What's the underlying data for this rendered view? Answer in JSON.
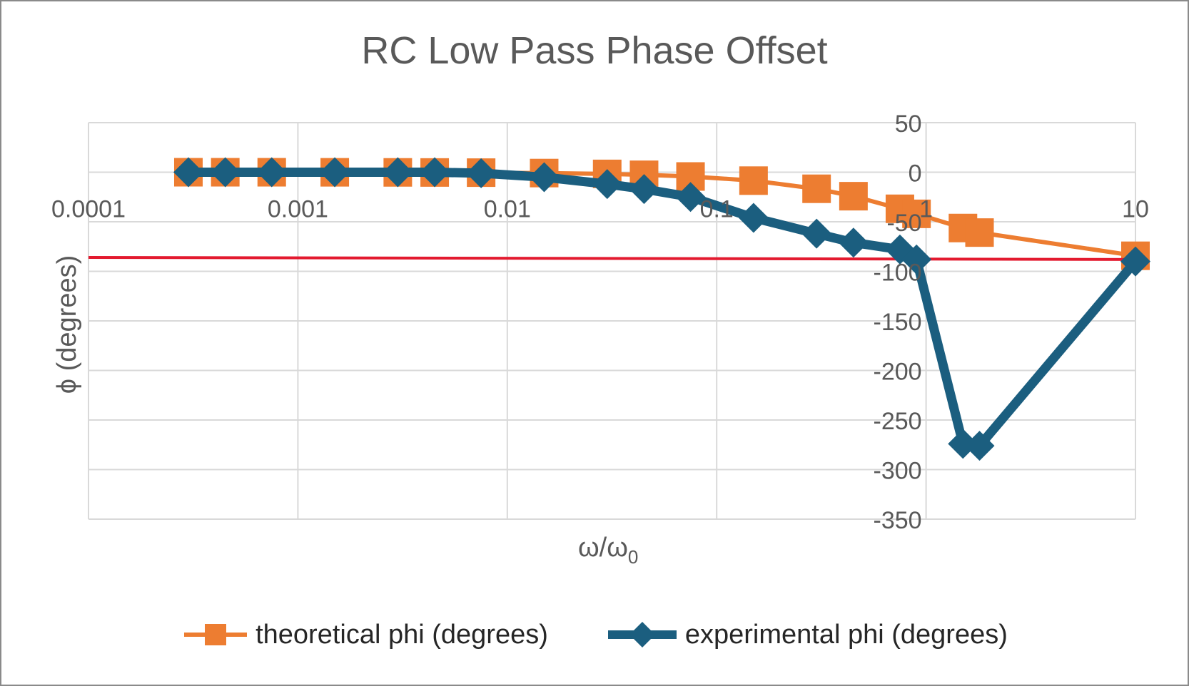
{
  "chart_data": {
    "type": "scatter",
    "title": "RC Low Pass Phase Offset",
    "xlabel_main": "ω/ω",
    "xlabel_sub": "0",
    "ylabel": "ϕ (degrees)",
    "x_scale": "log",
    "xlim": [
      0.0001,
      10
    ],
    "ylim": [
      -350,
      50
    ],
    "x_tick_labels": [
      "0.0001",
      "0.001",
      "0.01",
      "0.1",
      "1",
      "10"
    ],
    "x_tick_values": [
      0.0001,
      0.001,
      0.01,
      0.1,
      1,
      10
    ],
    "y_tick_values": [
      50,
      0,
      -50,
      -100,
      -150,
      -200,
      -250,
      -300,
      -350
    ],
    "y_tick_labels": [
      "50",
      "0",
      "-50",
      "-100",
      "-150",
      "-200",
      "-250",
      "-300",
      "-350"
    ],
    "grid": true,
    "legend_position": "bottom",
    "series": [
      {
        "name": "theoretical phi (degrees)",
        "color": "#ED7D31",
        "marker": "square",
        "x": [
          0.0003,
          0.00045,
          0.00075,
          0.0015,
          0.003,
          0.0045,
          0.0075,
          0.015,
          0.03,
          0.045,
          0.075,
          0.15,
          0.3,
          0.45,
          0.75,
          0.9,
          1.5,
          1.8,
          10
        ],
        "y": [
          -0.02,
          -0.03,
          -0.04,
          -0.09,
          -0.17,
          -0.26,
          -0.43,
          -0.86,
          -1.7,
          -2.6,
          -4.3,
          -8.5,
          -16.7,
          -24.2,
          -36.9,
          -42.0,
          -56.3,
          -60.9,
          -84.3
        ]
      },
      {
        "name": "experimental phi (degrees)",
        "color": "#1B5E7F",
        "marker": "diamond",
        "x": [
          0.0003,
          0.00045,
          0.00075,
          0.0015,
          0.003,
          0.0045,
          0.0075,
          0.015,
          0.03,
          0.045,
          0.075,
          0.15,
          0.3,
          0.45,
          0.75,
          0.9,
          1.5,
          1.8,
          10
        ],
        "y": [
          0,
          0,
          0,
          0,
          0,
          0,
          -1,
          -5,
          -12,
          -17,
          -25,
          -46,
          -62,
          -71,
          -78,
          -88,
          -274,
          -276,
          -90
        ]
      }
    ],
    "reference_line": {
      "y_start": -86,
      "y_end": -88,
      "color": "#E31A2F"
    }
  },
  "legend": {
    "theoretical": "theoretical phi (degrees)",
    "experimental": "experimental phi (degrees)"
  }
}
